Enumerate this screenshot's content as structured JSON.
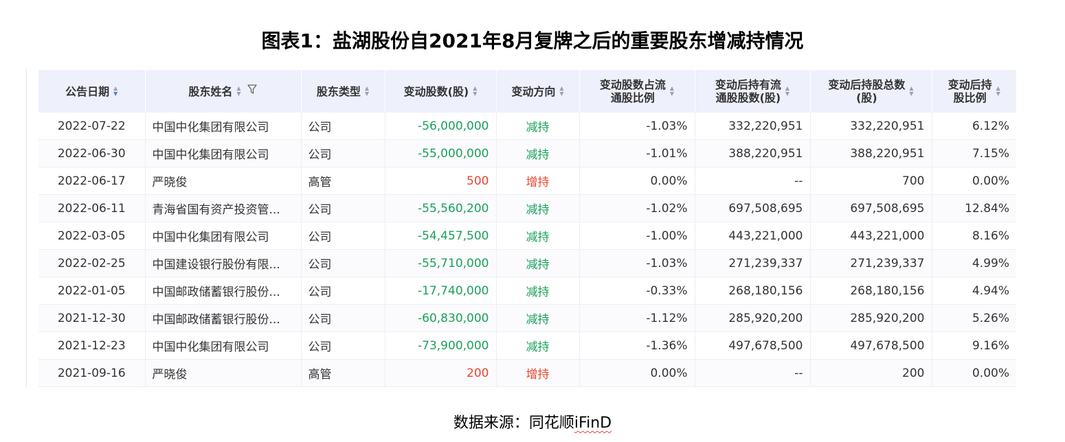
{
  "title": "图表1：盐湖股份自2021年8月复牌之后的重要股东增减持情况",
  "columns": [
    {
      "label": "公告日期",
      "sort": "desc"
    },
    {
      "label": "股东姓名",
      "sort": "none",
      "filter": true
    },
    {
      "label": "股东类型",
      "sort": "none"
    },
    {
      "label": "变动股数(股)",
      "sort": "none"
    },
    {
      "label": "变动方向",
      "sort": "none"
    },
    {
      "label": "变动股数占流\n通股比例",
      "sort": "none"
    },
    {
      "label": "变动后持有流\n通股股数(股)",
      "sort": "none"
    },
    {
      "label": "变动后持股总数\n(股)",
      "sort": "none"
    },
    {
      "label": "变动后持\n股比例",
      "sort": "none"
    }
  ],
  "rows": [
    {
      "date": "2022-07-22",
      "name": "中国中化集团有限公司",
      "type": "公司",
      "change": "-56,000,000",
      "direction": "减持",
      "ratio": "-1.03%",
      "float_after": "332,220,951",
      "total_after": "332,220,951",
      "hold_ratio": "6.12%",
      "dir_color": "neg"
    },
    {
      "date": "2022-06-30",
      "name": "中国中化集团有限公司",
      "type": "公司",
      "change": "-55,000,000",
      "direction": "减持",
      "ratio": "-1.01%",
      "float_after": "388,220,951",
      "total_after": "388,220,951",
      "hold_ratio": "7.15%",
      "dir_color": "neg"
    },
    {
      "date": "2022-06-17",
      "name": "严晓俊",
      "type": "高管",
      "change": "500",
      "direction": "增持",
      "ratio": "0.00%",
      "float_after": "--",
      "total_after": "700",
      "hold_ratio": "0.00%",
      "dir_color": "pos"
    },
    {
      "date": "2022-06-11",
      "name": "青海省国有资产投资管...",
      "type": "公司",
      "change": "-55,560,200",
      "direction": "减持",
      "ratio": "-1.02%",
      "float_after": "697,508,695",
      "total_after": "697,508,695",
      "hold_ratio": "12.84%",
      "dir_color": "neg"
    },
    {
      "date": "2022-03-05",
      "name": "中国中化集团有限公司",
      "type": "公司",
      "change": "-54,457,500",
      "direction": "减持",
      "ratio": "-1.00%",
      "float_after": "443,221,000",
      "total_after": "443,221,000",
      "hold_ratio": "8.16%",
      "dir_color": "neg"
    },
    {
      "date": "2022-02-25",
      "name": "中国建设银行股份有限...",
      "type": "公司",
      "change": "-55,710,000",
      "direction": "减持",
      "ratio": "-1.03%",
      "float_after": "271,239,337",
      "total_after": "271,239,337",
      "hold_ratio": "4.99%",
      "dir_color": "neg"
    },
    {
      "date": "2022-01-05",
      "name": "中国邮政储蓄银行股份...",
      "type": "公司",
      "change": "-17,740,000",
      "direction": "减持",
      "ratio": "-0.33%",
      "float_after": "268,180,156",
      "total_after": "268,180,156",
      "hold_ratio": "4.94%",
      "dir_color": "neg"
    },
    {
      "date": "2021-12-30",
      "name": "中国邮政储蓄银行股份...",
      "type": "公司",
      "change": "-60,830,000",
      "direction": "减持",
      "ratio": "-1.12%",
      "float_after": "285,920,200",
      "total_after": "285,920,200",
      "hold_ratio": "5.26%",
      "dir_color": "neg"
    },
    {
      "date": "2021-12-23",
      "name": "中国中化集团有限公司",
      "type": "公司",
      "change": "-73,900,000",
      "direction": "减持",
      "ratio": "-1.36%",
      "float_after": "497,678,500",
      "total_after": "497,678,500",
      "hold_ratio": "9.16%",
      "dir_color": "neg"
    },
    {
      "date": "2021-09-16",
      "name": "严晓俊",
      "type": "高管",
      "change": "200",
      "direction": "增持",
      "ratio": "0.00%",
      "float_after": "--",
      "total_after": "200",
      "hold_ratio": "0.00%",
      "dir_color": "pos"
    }
  ],
  "source": {
    "prefix": "数据来源：同花顺",
    "brand": "iFinD"
  },
  "colors": {
    "decrease": "#1aa05a",
    "increase": "#e8462c",
    "header_bg": "#eef0fb"
  },
  "icons": {
    "sort": "sort-caret-icon",
    "filter": "filter-funnel-icon"
  }
}
